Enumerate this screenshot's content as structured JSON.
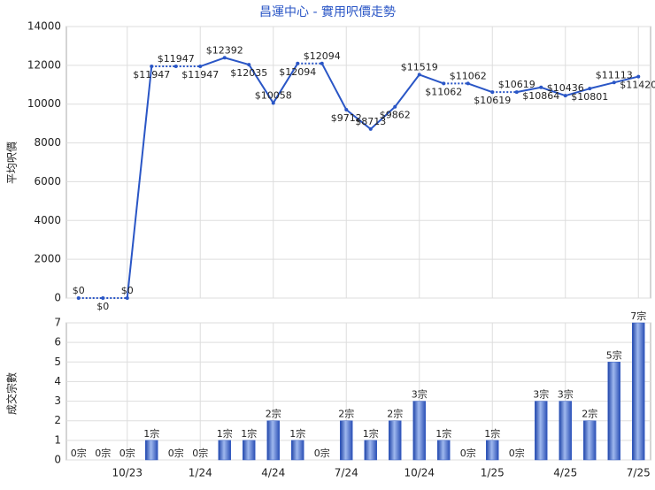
{
  "chart_data": [
    {
      "type": "line",
      "title": "昌運中心 - 實用呎價走勢",
      "y_label": "平均呎價",
      "color": "#2a56c6",
      "values": [
        0,
        0,
        0,
        11947,
        11947,
        11947,
        12392,
        12035,
        10058,
        12094,
        12094,
        9712,
        8713,
        9862,
        11519,
        11062,
        11062,
        10619,
        10619,
        10864,
        10436,
        10801,
        11113,
        11420
      ],
      "value_labels": [
        "$0",
        "$0",
        "$0",
        "$11947",
        "$11947",
        "$11947",
        "$12392",
        "$12035",
        "$10058",
        "$12094",
        "$12094",
        "$9712",
        "$8713",
        "$9862",
        "$11519",
        "$11062",
        "$11062",
        "$10619",
        "$10619",
        "$10864",
        "$10436",
        "$10801",
        "$11113",
        "$11420"
      ],
      "ylim": [
        0,
        14000
      ],
      "yticks": [
        0,
        2000,
        4000,
        6000,
        8000,
        10000,
        12000,
        14000
      ],
      "grid": true
    },
    {
      "type": "bar",
      "y_label": "成交宗數",
      "color": "#3a62c8",
      "categories": [
        null,
        null,
        "10/23",
        null,
        null,
        "1/24",
        null,
        null,
        "4/24",
        null,
        null,
        "7/24",
        null,
        null,
        "10/24",
        null,
        null,
        "1/25",
        null,
        null,
        "4/25",
        null,
        null,
        "7/25"
      ],
      "values": [
        0,
        0,
        0,
        1,
        0,
        0,
        1,
        1,
        2,
        1,
        0,
        2,
        1,
        2,
        3,
        1,
        0,
        1,
        0,
        3,
        3,
        2,
        5,
        7
      ],
      "value_labels": [
        "0宗",
        "0宗",
        "0宗",
        "1宗",
        "0宗",
        "0宗",
        "1宗",
        "1宗",
        "2宗",
        "1宗",
        "0宗",
        "2宗",
        "1宗",
        "2宗",
        "3宗",
        "1宗",
        "0宗",
        "1宗",
        "0宗",
        "3宗",
        "3宗",
        "2宗",
        "5宗",
        "7宗"
      ],
      "ylim": [
        0,
        7
      ],
      "yticks": [
        0,
        1,
        2,
        3,
        4,
        5,
        6,
        7
      ],
      "grid": true
    }
  ]
}
